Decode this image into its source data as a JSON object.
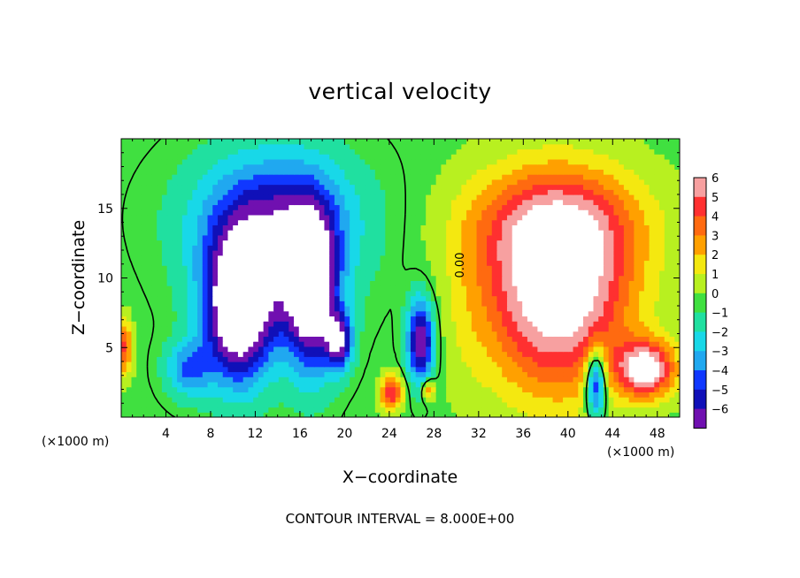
{
  "chart_data": {
    "type": "heatmap",
    "title": "vertical velocity",
    "xlabel": "X−coordinate",
    "ylabel": "Z−coordinate",
    "x_unit_left": "(×1000 m)",
    "x_unit_right": "(×1000 m)",
    "xlim": [
      0,
      50
    ],
    "ylim": [
      0,
      20
    ],
    "x_ticks": [
      4,
      8,
      12,
      16,
      20,
      24,
      28,
      32,
      36,
      40,
      44,
      48
    ],
    "x_tick_labels": [
      "4",
      "8",
      "12",
      "16",
      "20",
      "24",
      "28",
      "32",
      "36",
      "40",
      "44",
      "48"
    ],
    "y_ticks": [
      5,
      10,
      15
    ],
    "y_tick_labels": [
      "5",
      "10",
      "15"
    ],
    "colorbar": {
      "levels": [
        6,
        5,
        4,
        3,
        2,
        1,
        0,
        -1,
        -2,
        -3,
        -4,
        -5,
        -6
      ],
      "labels": [
        "6",
        "5",
        "4",
        "3",
        "2",
        "1",
        "0",
        "−1",
        "−2",
        "−3",
        "−4",
        "−5",
        "−6"
      ],
      "colors": [
        "#f7a0a0",
        "#ff3030",
        "#ff6a10",
        "#ffa000",
        "#f4e810",
        "#b8f020",
        "#40e040",
        "#20e0a0",
        "#18d8e8",
        "#20a8f0",
        "#1038ff",
        "#1010b8",
        "#7010b0"
      ]
    },
    "contour_label": "0.00",
    "contour_interval_text": "CONTOUR INTERVAL = 8.000E+00",
    "features": [
      {
        "x": 10.5,
        "z": 7.5,
        "rx": 3.0,
        "rz": 5.0,
        "w": -8.5
      },
      {
        "x": 17.0,
        "z": 9.0,
        "rx": 2.2,
        "rz": 5.5,
        "w": -8.0
      },
      {
        "x": 13.5,
        "z": 12.0,
        "rx": 6.0,
        "rz": 6.0,
        "w": -4.5
      },
      {
        "x": 19.5,
        "z": 5.5,
        "rx": 1.2,
        "rz": 2.0,
        "w": -6.0
      },
      {
        "x": 26.8,
        "z": 5.5,
        "rx": 1.2,
        "rz": 3.0,
        "w": -7.0
      },
      {
        "x": 24.2,
        "z": 1.8,
        "rx": 1.0,
        "rz": 1.2,
        "w": 5.5
      },
      {
        "x": 27.5,
        "z": 2.0,
        "rx": 0.6,
        "rz": 0.8,
        "w": 3.5
      },
      {
        "x": 39.0,
        "z": 9.0,
        "rx": 6.5,
        "rz": 7.0,
        "w": 8.0
      },
      {
        "x": 47.0,
        "z": 3.5,
        "rx": 2.6,
        "rz": 2.0,
        "w": 7.0
      },
      {
        "x": 42.5,
        "z": 2.5,
        "rx": 0.9,
        "rz": 2.5,
        "w": -6.5
      },
      {
        "x": 0.3,
        "z": 5.0,
        "rx": 0.7,
        "rz": 2.0,
        "w": 4.5
      },
      {
        "x": 39.0,
        "z": 14.0,
        "rx": 8.0,
        "rz": 4.0,
        "w": 3.5
      },
      {
        "x": 14.0,
        "z": 14.5,
        "rx": 8.0,
        "rz": 4.5,
        "w": -2.5
      },
      {
        "x": 31.0,
        "z": 8.0,
        "rx": 2.0,
        "rz": 8.0,
        "w": 0.5
      },
      {
        "x": 6.0,
        "z": 3.5,
        "rx": 2.0,
        "rz": 2.0,
        "w": -3.5
      }
    ]
  }
}
